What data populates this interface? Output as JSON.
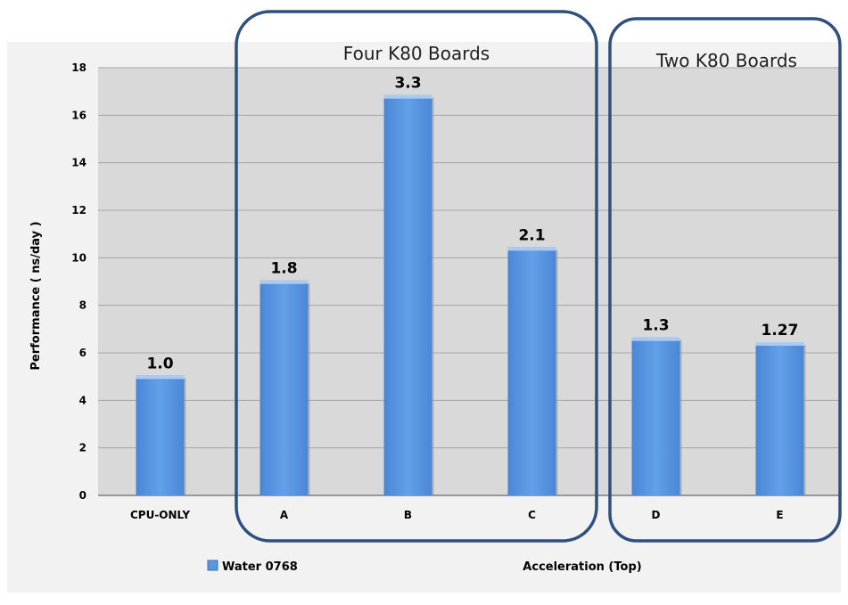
{
  "chart_data": {
    "type": "bar",
    "categories": [
      "CPU-ONLY",
      "A",
      "B",
      "C",
      "D",
      "E"
    ],
    "series": [
      {
        "name": "Water 0768",
        "values": [
          5.05,
          9.05,
          16.85,
          10.45,
          6.65,
          6.45
        ]
      }
    ],
    "data_labels": [
      "1.0",
      "1.8",
      "3.3",
      "2.1",
      "1.3",
      "1.27"
    ],
    "ylabel": "Performance (  ns/day )",
    "xlabel": "Acceleration  (Top)",
    "ylim": [
      0,
      18
    ],
    "yticks": [
      0,
      2,
      4,
      6,
      8,
      10,
      12,
      14,
      16,
      18
    ],
    "grid": true,
    "legend": "bottom-left",
    "bar_color": "#5a96e0",
    "plot_background": "#d9d9d9",
    "chart_background": "#f2f2f2",
    "groups": [
      {
        "label": "Four K80 Boards",
        "categories": [
          "A",
          "B",
          "C"
        ]
      },
      {
        "label": "Two K80 Boards",
        "categories": [
          "D",
          "E"
        ]
      }
    ],
    "group_outline_color": "#2d5080"
  }
}
